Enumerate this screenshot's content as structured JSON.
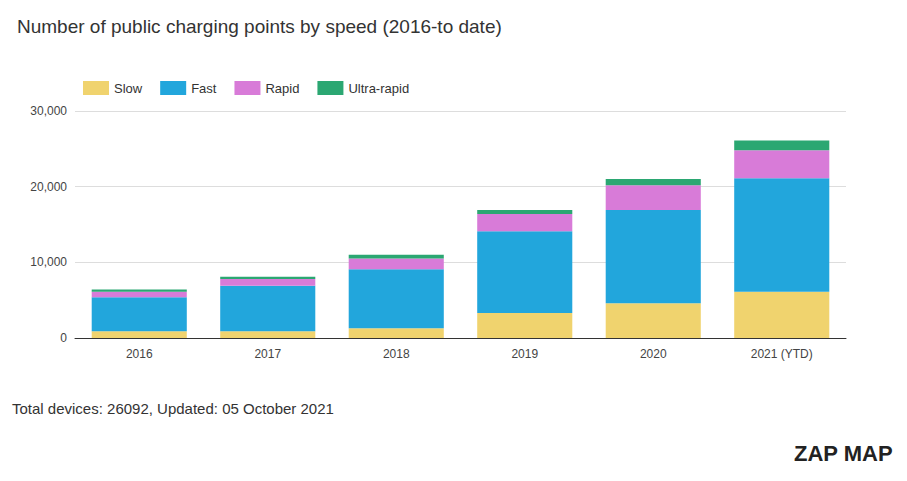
{
  "chart_data": {
    "type": "bar",
    "stacked": true,
    "title": "Number of public charging points by speed (2016-to date)",
    "categories": [
      "2016",
      "2017",
      "2018",
      "2019",
      "2020",
      "2021 (YTD)"
    ],
    "series": [
      {
        "name": "Slow",
        "color": "#f0d36e",
        "values": [
          900,
          900,
          1300,
          3300,
          4600,
          6100
        ]
      },
      {
        "name": "Fast",
        "color": "#22a6dc",
        "values": [
          4500,
          6000,
          7800,
          10800,
          12300,
          15000
        ]
      },
      {
        "name": "Rapid",
        "color": "#d87bd8",
        "values": [
          700,
          900,
          1400,
          2300,
          3300,
          3700
        ]
      },
      {
        "name": "Ultra-rapid",
        "color": "#2ba772",
        "values": [
          300,
          300,
          500,
          500,
          800,
          1300
        ]
      }
    ],
    "ylim": [
      0,
      30000
    ],
    "yticks": [
      0,
      {
        "value": 10000,
        "label": "10,000"
      },
      {
        "value": 20000,
        "label": "20,000"
      },
      {
        "value": 30000,
        "label": "30,000"
      }
    ],
    "grid": true,
    "legend": "top-left",
    "annotations": [
      "Total devices: 26092, Updated: 05 October 2021",
      "ZAP MAP"
    ]
  }
}
